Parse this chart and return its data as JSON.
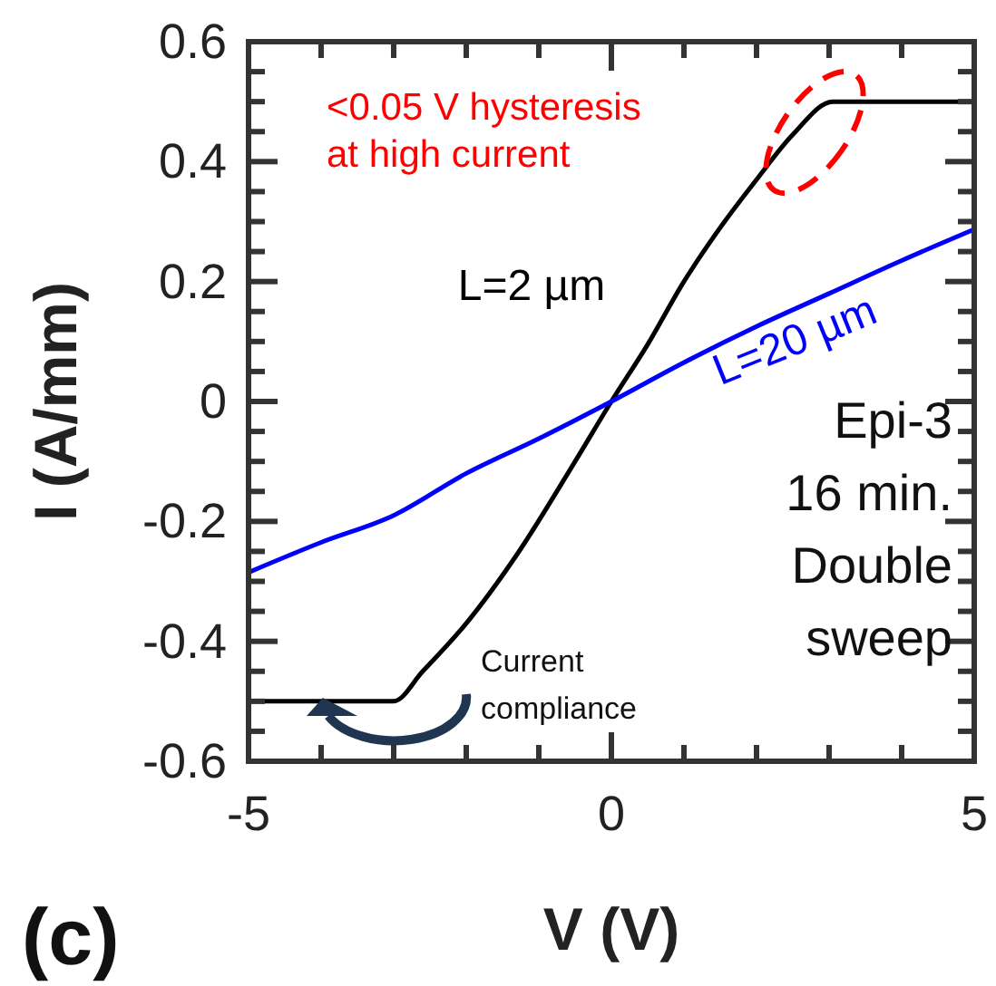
{
  "chart_data": {
    "type": "line",
    "xlabel": "V (V)",
    "ylabel": "I (A/mm)",
    "xlim": [
      -5,
      5
    ],
    "xticks": [
      -5,
      {
        "value": -4,
        "label": null
      },
      {
        "value": -3,
        "label": null
      },
      {
        "value": -2,
        "label": null
      },
      {
        "value": -1,
        "label": null
      },
      0,
      {
        "value": 1,
        "label": null
      },
      {
        "value": 2,
        "label": null
      },
      {
        "value": 3,
        "label": null
      },
      {
        "value": 4,
        "label": null
      },
      5
    ],
    "ylim": [
      -0.6,
      0.6
    ],
    "yticks": [
      -0.6,
      {
        "value": -0.55,
        "label": null
      },
      {
        "value": -0.5,
        "label": null
      },
      {
        "value": -0.45,
        "label": null
      },
      -0.4,
      {
        "value": -0.35,
        "label": null
      },
      {
        "value": -0.3,
        "label": null
      },
      {
        "value": -0.25,
        "label": null
      },
      -0.2,
      {
        "value": -0.15,
        "label": null
      },
      {
        "value": -0.1,
        "label": null
      },
      {
        "value": -0.05,
        "label": null
      },
      0,
      {
        "value": 0.05,
        "label": null
      },
      {
        "value": 0.1,
        "label": null
      },
      {
        "value": 0.15,
        "label": null
      },
      0.2,
      {
        "value": 0.25,
        "label": null
      },
      {
        "value": 0.3,
        "label": null
      },
      {
        "value": 0.35,
        "label": null
      },
      0.4,
      {
        "value": 0.45,
        "label": null
      },
      {
        "value": 0.5,
        "label": null
      },
      {
        "value": 0.55,
        "label": null
      },
      0.6
    ],
    "series": [
      {
        "name": "L=2 µm",
        "color": "#000000",
        "x": [
          -5,
          -3,
          -2.6,
          -2,
          -1.3,
          -0.5,
          0,
          0.5,
          1,
          1.5,
          2,
          2.5,
          3.05,
          5
        ],
        "values": [
          -0.5,
          -0.5,
          -0.45,
          -0.37,
          -0.255,
          -0.1,
          0,
          0.095,
          0.2,
          0.29,
          0.37,
          0.445,
          0.5,
          0.5
        ]
      },
      {
        "name": "L=20 µm",
        "color": "#0000ff",
        "x": [
          -5,
          -4,
          -3,
          -2,
          -1,
          0,
          1,
          2,
          3,
          4,
          5
        ],
        "values": [
          -0.285,
          -0.235,
          -0.19,
          -0.12,
          -0.062,
          0,
          0.065,
          0.125,
          0.18,
          0.235,
          0.287
        ]
      }
    ],
    "annotations": [
      "<0.05 V hysteresis\nat high current",
      "Current compliance",
      "Epi-3\n16 min.\nDouble\nsweep",
      "(c)"
    ],
    "grid": false,
    "marker": "none",
    "line_style": "solid"
  }
}
